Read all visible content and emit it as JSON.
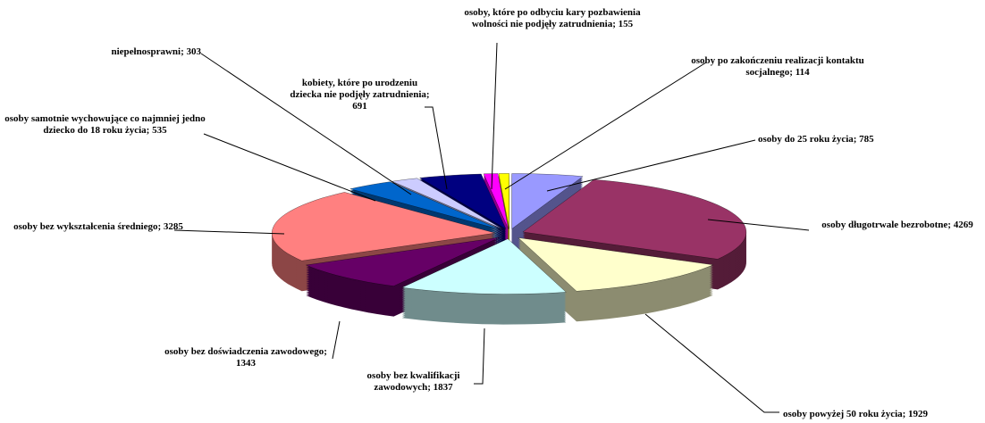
{
  "chart_data": {
    "type": "pie3d",
    "categories": [
      "osoby do 25 roku życia;",
      "osoby długotrwale bezrobotne;",
      "osoby powyżej 50 roku życia;",
      "osoby bez kwalifikacji zawodowych;",
      "osoby bez doświadczenia zawodowego;",
      "osoby bez wykształcenia średniego;",
      "osoby samotnie wychowujące co najmniej jedno dziecko do 18 roku życia;",
      "niepełnosprawni;",
      "kobiety, które po urodzeniu dziecka nie podjęły zatrudnienia;",
      "osoby, które po odbyciu kary pozbawienia wolności nie podjęły zatrudnienia;",
      "osoby po zakończeniu realizacji kontaktu socjalnego;"
    ],
    "values": [
      785,
      4269,
      1929,
      1837,
      1343,
      3285,
      535,
      303,
      691,
      155,
      114
    ],
    "colors": [
      "#9999ff",
      "#993366",
      "#ffffcc",
      "#ccffff",
      "#660066",
      "#ff8080",
      "#0066cc",
      "#ccccff",
      "#000080",
      "#ff00ff",
      "#ffff00"
    ]
  }
}
